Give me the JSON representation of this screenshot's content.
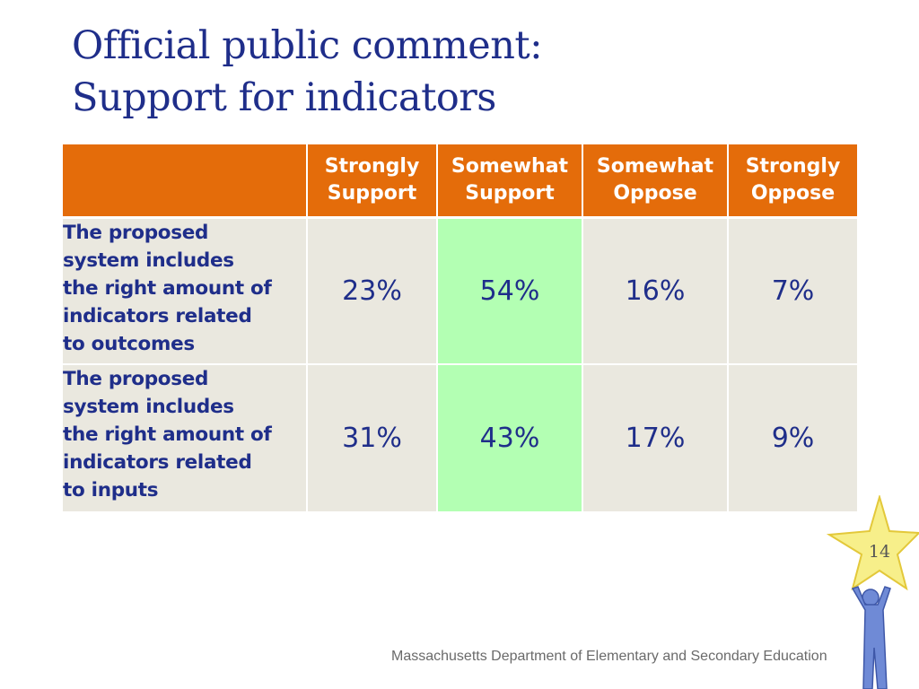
{
  "slide": {
    "title_line1": "Official public comment:",
    "title_line2": "Support for indicators",
    "page_number": "14",
    "footer": "Massachusetts Department of Elementary and Secondary Education"
  },
  "table": {
    "headers": [
      {
        "line1": "Strongly",
        "line2": "Support"
      },
      {
        "line1": "Somewhat",
        "line2": "Support"
      },
      {
        "line1": "Somewhat",
        "line2": "Oppose"
      },
      {
        "line1": "Strongly",
        "line2": "Oppose"
      }
    ],
    "rows": [
      {
        "label_lines": [
          "The proposed",
          "system includes",
          "the right amount of",
          "indicators related",
          "to outcomes"
        ],
        "values": [
          "23%",
          "54%",
          "16%",
          "7%"
        ]
      },
      {
        "label_lines": [
          "The proposed",
          "system includes",
          "the right amount of",
          "indicators related",
          "to inputs"
        ],
        "values": [
          "31%",
          "43%",
          "17%",
          "9%"
        ]
      }
    ],
    "highlight_column": 1,
    "colors": {
      "header": "#e46c0a",
      "cell": "#eae8df",
      "highlight": "#b3ffb3",
      "text": "#1f2e8a"
    }
  },
  "mascot": {
    "icon": "star-person-icon"
  }
}
